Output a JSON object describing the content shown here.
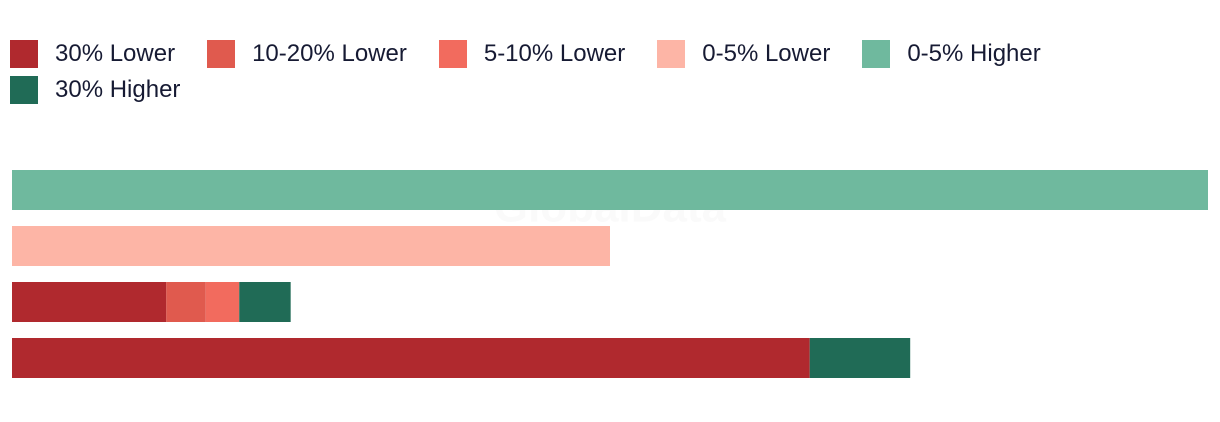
{
  "chart_data": {
    "type": "stacked-bar-horizontal",
    "watermark": "GlobalData",
    "categories": [
      null,
      null,
      null,
      null
    ],
    "xlim": [
      0,
      100
    ],
    "series": [
      {
        "name": "30% Lower",
        "color": "#b0292e",
        "values": [
          null,
          null,
          12.9,
          66.7
        ]
      },
      {
        "name": "10-20% Lower",
        "color": "#e05a4e",
        "values": [
          null,
          null,
          3.3,
          null
        ]
      },
      {
        "name": "5-10% Lower",
        "color": "#f26b5e",
        "values": [
          null,
          null,
          2.8,
          null
        ]
      },
      {
        "name": "0-5% Lower",
        "color": "#fdb5a6",
        "values": [
          null,
          50,
          null,
          null
        ]
      },
      {
        "name": "0-5% Higher",
        "color": "#6fb99e",
        "values": [
          100,
          null,
          null,
          null
        ]
      },
      {
        "name": "30% Higher",
        "color": "#206b56",
        "values": [
          null,
          null,
          4.3,
          8.4
        ]
      }
    ]
  }
}
